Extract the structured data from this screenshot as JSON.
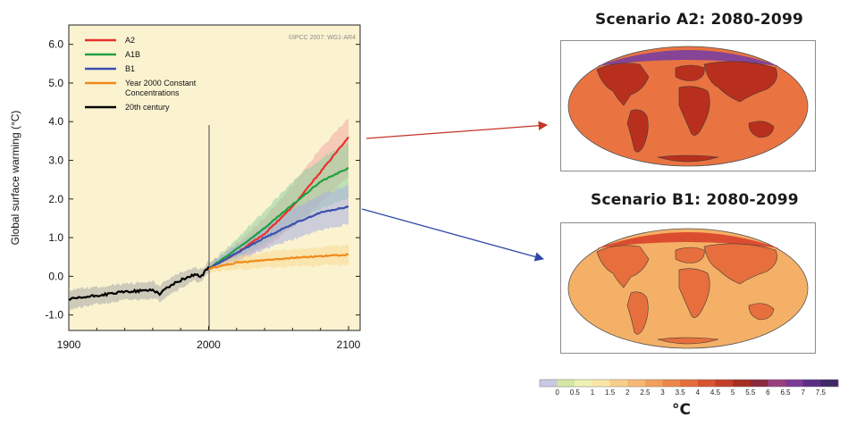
{
  "chart_data": {
    "type": "line",
    "credit": "©IPCC 2007: WG1-AR4",
    "ylabel": "Global surface warming (°C)",
    "xlabel": "",
    "xlim": [
      1900,
      2100
    ],
    "ylim": [
      -1.4,
      6.5
    ],
    "x_ticks": [
      "1900",
      "2000",
      "2100"
    ],
    "y_ticks": [
      "6.0",
      "5.0",
      "4.0",
      "3.0",
      "2.0",
      "1.0",
      "0.0",
      "-1.0"
    ],
    "legend_position": "top-left",
    "grid": false,
    "series": [
      {
        "name": "A2",
        "color": "#e8322b",
        "band_color": "#f0a8a0",
        "x": [
          2000,
          2020,
          2040,
          2060,
          2080,
          2100
        ],
        "values": [
          0.2,
          0.6,
          1.1,
          1.8,
          2.7,
          3.6
        ],
        "band_low": [
          0.15,
          0.4,
          0.75,
          1.25,
          1.9,
          2.6
        ],
        "band_high": [
          0.3,
          0.85,
          1.5,
          2.35,
          3.3,
          4.1
        ]
      },
      {
        "name": "A1B",
        "color": "#22a041",
        "band_color": "#8fd0a0",
        "x": [
          2000,
          2020,
          2040,
          2060,
          2080,
          2100
        ],
        "values": [
          0.2,
          0.7,
          1.25,
          1.85,
          2.45,
          2.8
        ],
        "band_low": [
          0.15,
          0.45,
          0.85,
          1.3,
          1.75,
          2.05
        ],
        "band_high": [
          0.3,
          0.95,
          1.7,
          2.45,
          3.05,
          3.45
        ]
      },
      {
        "name": "B1",
        "color": "#3c4fb0",
        "band_color": "#a8aee0",
        "x": [
          2000,
          2020,
          2040,
          2060,
          2080,
          2100
        ],
        "values": [
          0.2,
          0.6,
          1.0,
          1.35,
          1.65,
          1.8
        ],
        "band_low": [
          0.15,
          0.4,
          0.7,
          0.95,
          1.2,
          1.35
        ],
        "band_high": [
          0.3,
          0.8,
          1.3,
          1.75,
          2.1,
          2.35
        ]
      },
      {
        "name": "Year 2000 Constant Concentrations",
        "color": "#f08a1a",
        "band_color": "#f7d890",
        "x": [
          2000,
          2020,
          2040,
          2060,
          2080,
          2100
        ],
        "values": [
          0.2,
          0.35,
          0.42,
          0.48,
          0.52,
          0.56
        ],
        "band_low": [
          0.1,
          0.18,
          0.22,
          0.25,
          0.28,
          0.3
        ],
        "band_high": [
          0.3,
          0.5,
          0.62,
          0.7,
          0.76,
          0.82
        ]
      },
      {
        "name": "20th century",
        "color": "#000000",
        "band_color": "#a8a8a8",
        "x": [
          1900,
          1910,
          1920,
          1930,
          1940,
          1950,
          1960,
          1965,
          1970,
          1980,
          1990,
          1995,
          2000
        ],
        "values": [
          -0.6,
          -0.55,
          -0.5,
          -0.45,
          -0.4,
          -0.38,
          -0.35,
          -0.45,
          -0.3,
          -0.1,
          0.05,
          0.0,
          0.25
        ],
        "band_low": [
          -0.85,
          -0.8,
          -0.72,
          -0.68,
          -0.62,
          -0.6,
          -0.56,
          -0.65,
          -0.5,
          -0.3,
          -0.12,
          -0.15,
          0.1
        ],
        "band_high": [
          -0.35,
          -0.3,
          -0.28,
          -0.24,
          -0.2,
          -0.16,
          -0.14,
          -0.25,
          -0.1,
          0.1,
          0.22,
          0.18,
          0.4
        ]
      }
    ]
  },
  "maps": [
    {
      "title": "Scenario A2: 2080-2099",
      "ocean_color": "#e97442",
      "land_color": "#b62a1c",
      "polar_color": "#7a3f9e"
    },
    {
      "title": "Scenario B1: 2080-2099",
      "ocean_color": "#f4b066",
      "land_color": "#e56a3a",
      "polar_color": "#d8432a"
    }
  ],
  "color_scale": {
    "unit": "°C",
    "labels": [
      "0",
      "0.5",
      "1",
      "1.5",
      "2",
      "2.5",
      "3",
      "3.5",
      "4",
      "4.5",
      "5",
      "5.5",
      "6",
      "6.5",
      "7",
      "7.5"
    ],
    "colors": [
      "#c9c9e4",
      "#d6e7a3",
      "#eef1b2",
      "#fbe5a6",
      "#f8cf88",
      "#f5b873",
      "#f29f5d",
      "#ec8749",
      "#e46e3b",
      "#d75530",
      "#c43e28",
      "#a62d22",
      "#8b2a3e",
      "#9a3f7e",
      "#7b3a95",
      "#5a2e86",
      "#3f2a66"
    ]
  },
  "arrows": [
    {
      "color": "#c43428"
    },
    {
      "color": "#2f49a8"
    }
  ]
}
